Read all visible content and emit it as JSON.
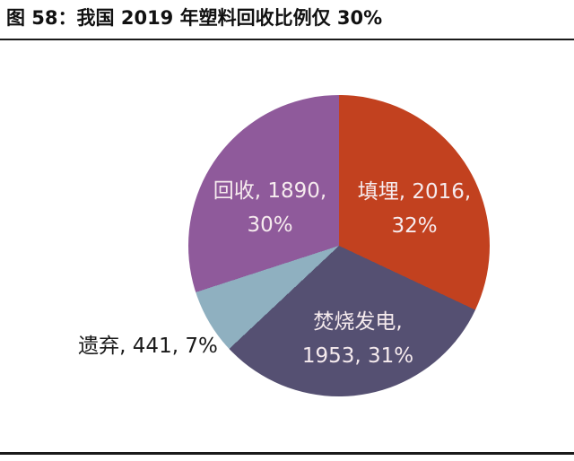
{
  "header": {
    "title": "图 58：我国 2019 年塑料回收比例仅 30%"
  },
  "chart_data": {
    "type": "pie",
    "title": "图 58：我国 2019 年塑料回收比例仅 30%",
    "total": 6300,
    "start_angle_deg": 0,
    "direction": "clockwise",
    "legend": false,
    "label_text_color_inside": "#F6EBEE",
    "label_text_color_outside": "#1A1A1A",
    "slices": [
      {
        "name": "填埋",
        "value": 2016,
        "percent": 32,
        "color": "#C2411F",
        "label_line1": "填埋, 2016,",
        "label_line2": "32%",
        "label_placement": "inside"
      },
      {
        "name": "焚烧发电",
        "value": 1953,
        "percent": 31,
        "color": "#555072",
        "label_line1": "焚烧发电,",
        "label_line2": "1953, 31%",
        "label_placement": "inside"
      },
      {
        "name": "遗弃",
        "value": 441,
        "percent": 7,
        "color": "#8FB0C0",
        "label_line1": "遗弃, 441, 7%",
        "label_line2": "",
        "label_placement": "outside"
      },
      {
        "name": "回收",
        "value": 1890,
        "percent": 30,
        "color": "#8F5A9B",
        "label_line1": "回收, 1890,",
        "label_line2": "30%",
        "label_placement": "inside"
      }
    ]
  }
}
